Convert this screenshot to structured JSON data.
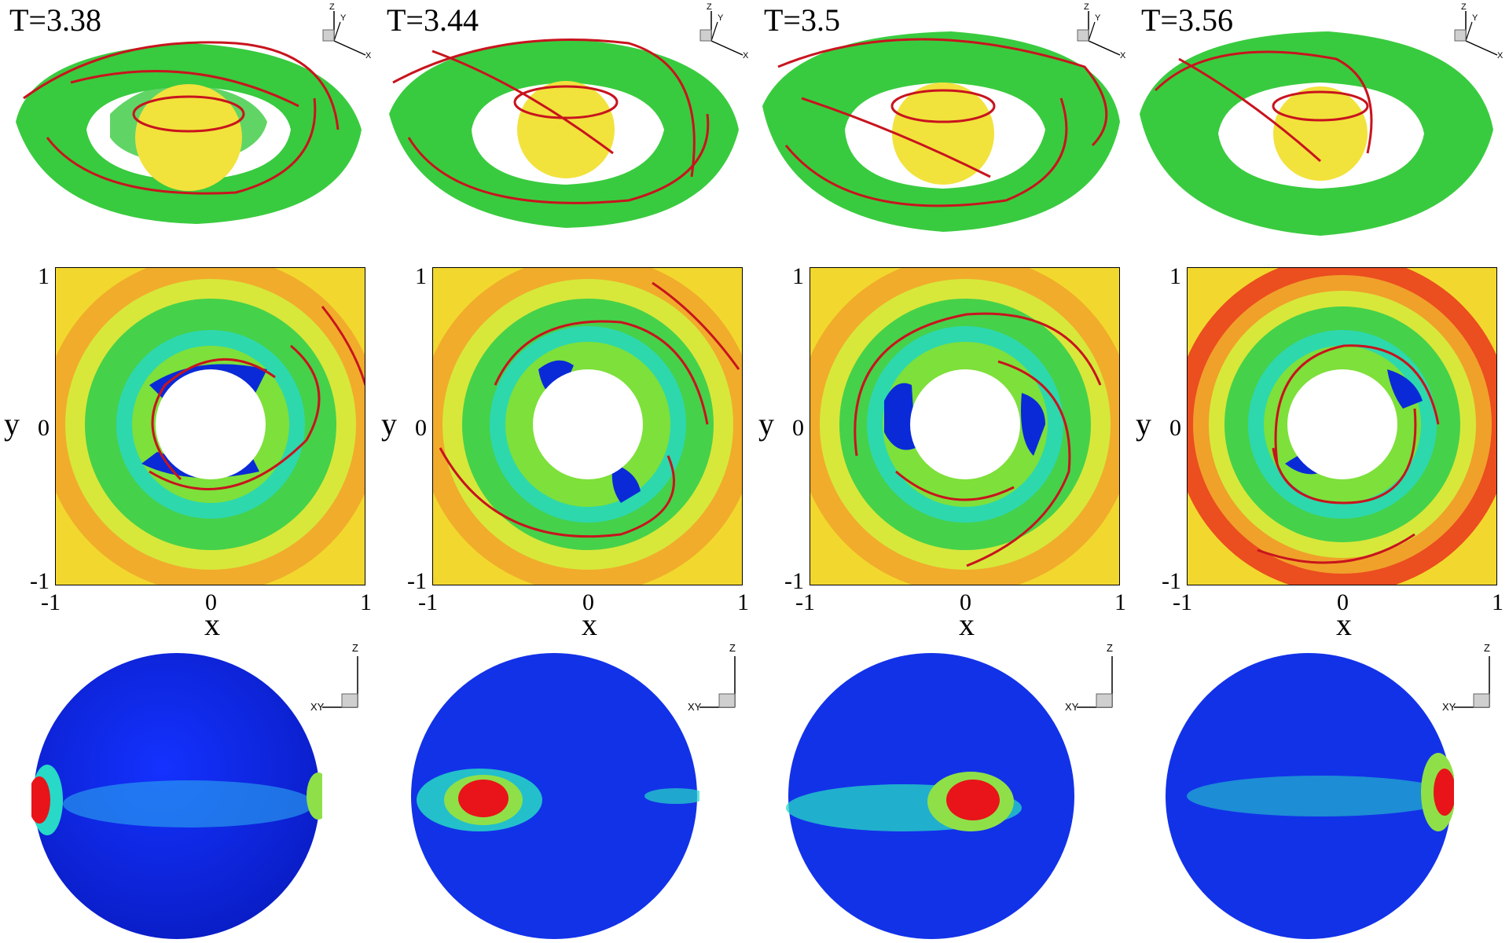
{
  "figure": {
    "panels": [
      {
        "time_label": "T=3.38"
      },
      {
        "time_label": "T=3.44"
      },
      {
        "time_label": "T=3.5"
      },
      {
        "time_label": "T=3.56"
      }
    ],
    "slice_plot": {
      "xlabel": "x",
      "ylabel": "y",
      "x_ticks": [
        "-1",
        "0",
        "1"
      ],
      "y_ticks": [
        "1",
        "0",
        "-1"
      ],
      "xlim": [
        -1,
        1
      ],
      "ylim": [
        -1,
        1
      ]
    },
    "axis_triad": {
      "top_row": {
        "x": "X",
        "y": "Y",
        "z": "Z"
      },
      "bottom_row": {
        "xy": "XY",
        "z": "Z"
      }
    },
    "colors": {
      "isosurface": "#2ec835",
      "sphere": "#f2e23c",
      "streamlines": "#c8141e",
      "contour_high": "#e8141a",
      "contour_mid": "#46d14a",
      "contour_low": "#0a2ad8"
    }
  }
}
